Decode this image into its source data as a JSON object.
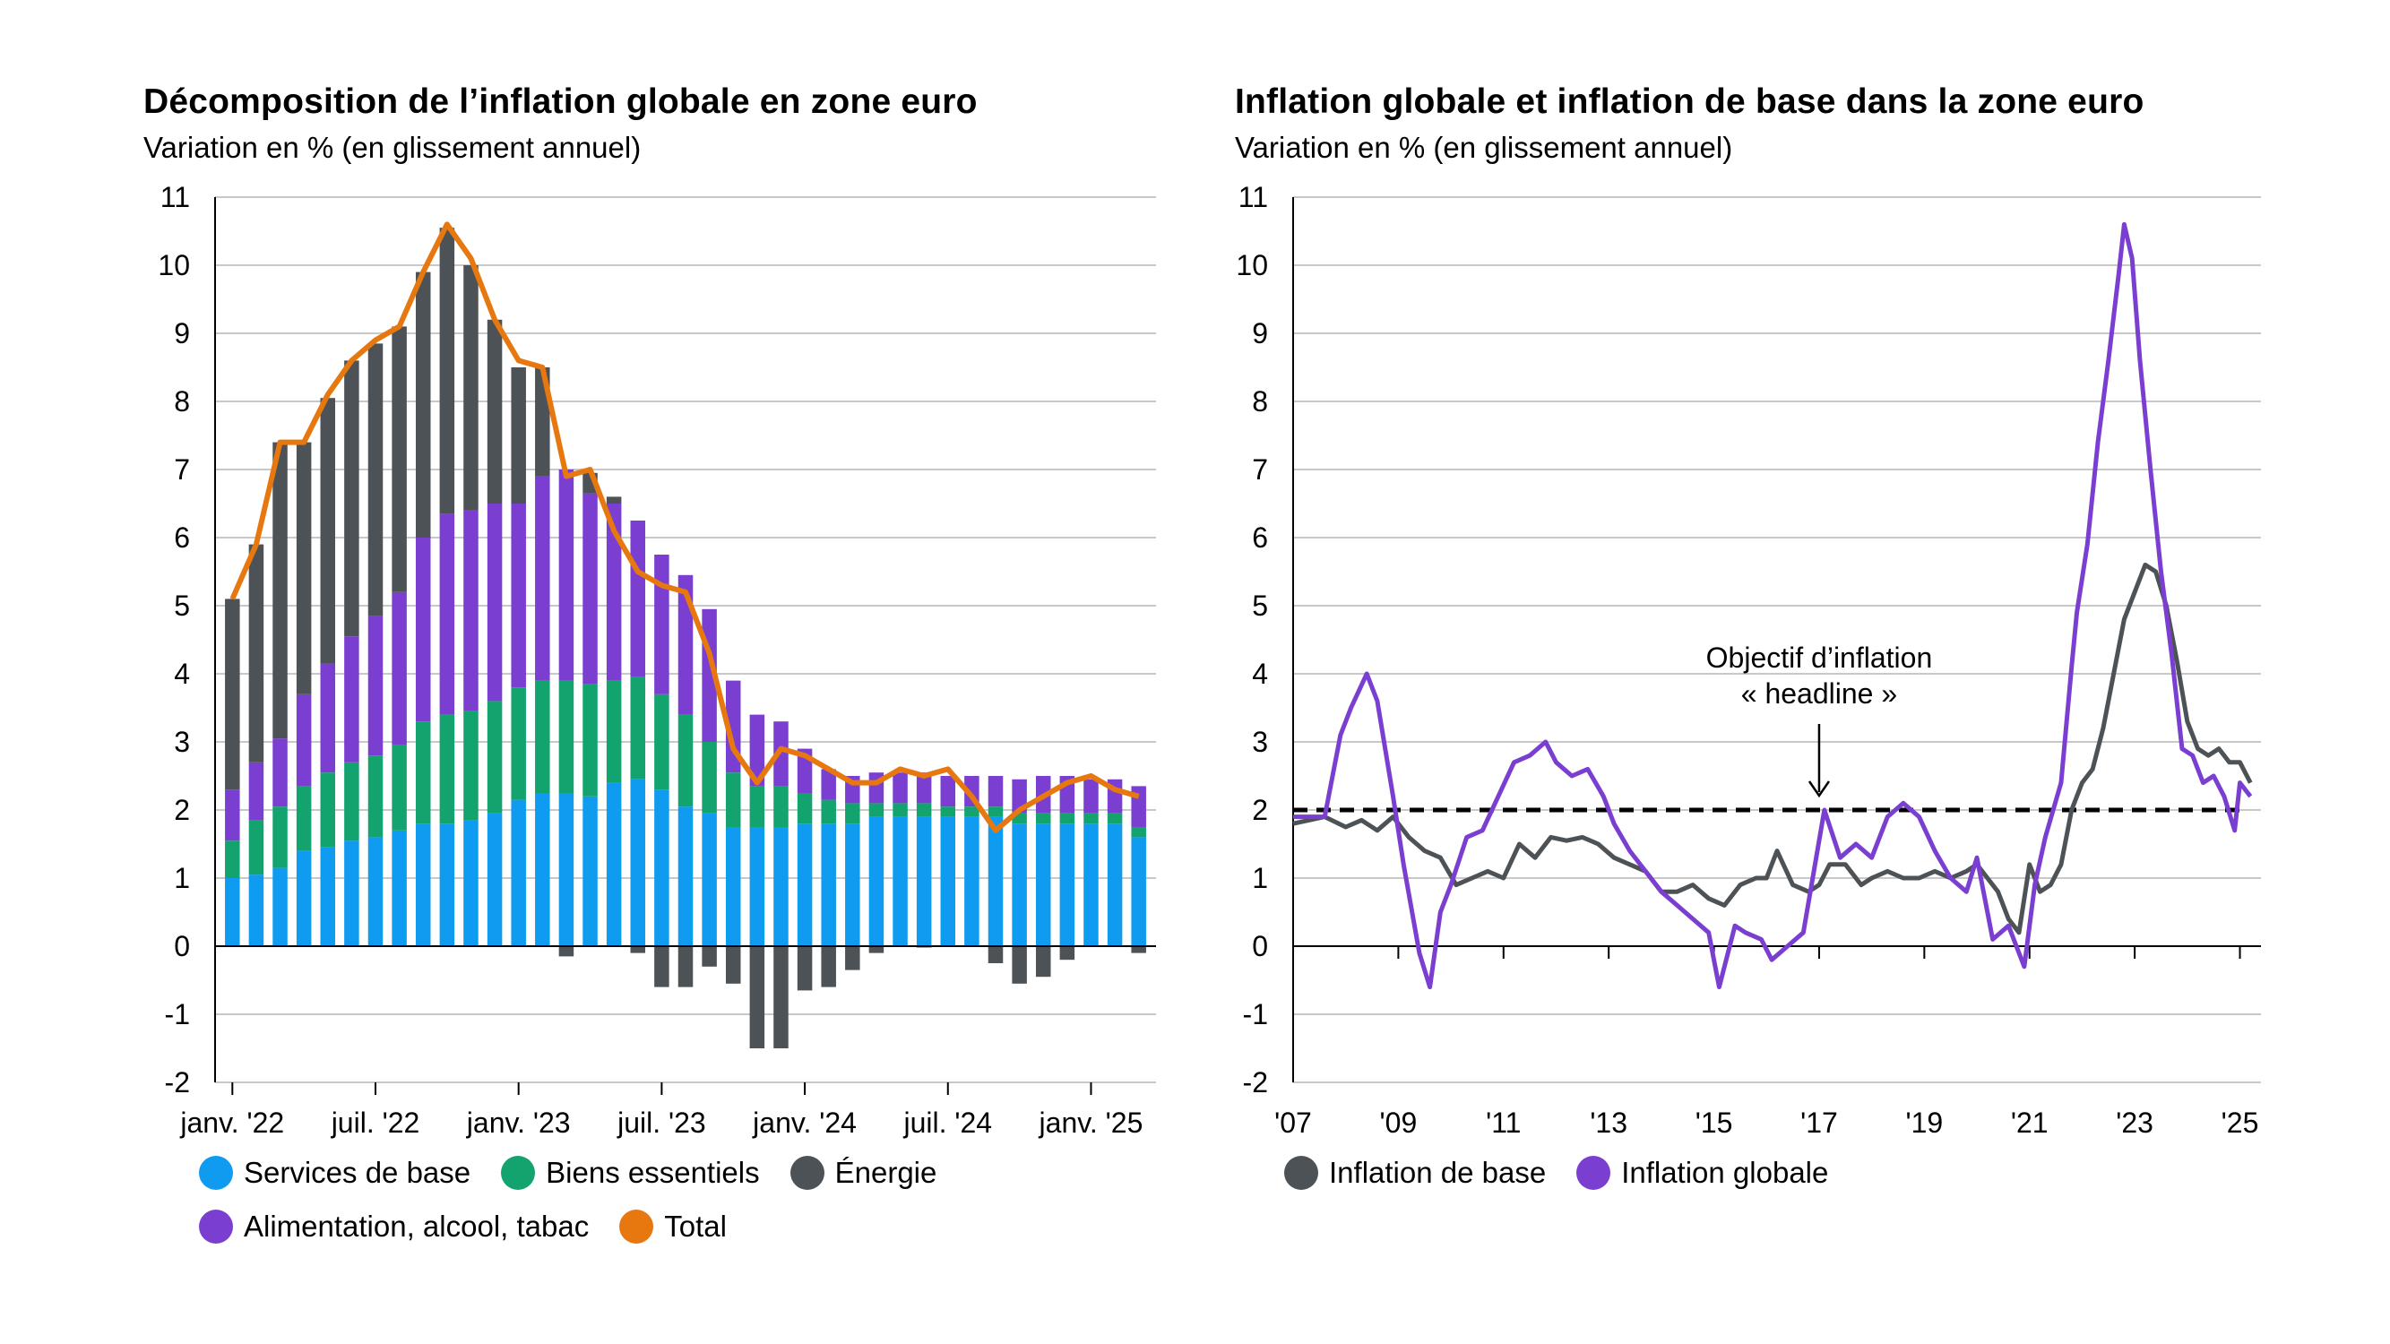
{
  "chart_data": [
    {
      "type": "bar",
      "stacked": true,
      "title": "Décomposition de l’inflation globale en zone euro",
      "subtitle": "Variation en % (en glissement annuel)",
      "ylim": [
        -2,
        11
      ],
      "yticks": [
        -2,
        -1,
        0,
        1,
        2,
        3,
        4,
        5,
        6,
        7,
        8,
        9,
        10,
        11
      ],
      "xtick_labels": [
        "janv. '22",
        "juil. '22",
        "janv. '23",
        "juil. '23",
        "janv. '24",
        "juil. '24",
        "janv. '25"
      ],
      "xtick_indices": [
        0,
        6,
        12,
        18,
        24,
        30,
        36
      ],
      "categories": [
        "2022-01",
        "2022-02",
        "2022-03",
        "2022-04",
        "2022-05",
        "2022-06",
        "2022-07",
        "2022-08",
        "2022-09",
        "2022-10",
        "2022-11",
        "2022-12",
        "2023-01",
        "2023-02",
        "2023-03",
        "2023-04",
        "2023-05",
        "2023-06",
        "2023-07",
        "2023-08",
        "2023-09",
        "2023-10",
        "2023-11",
        "2023-12",
        "2024-01",
        "2024-02",
        "2024-03",
        "2024-04",
        "2024-05",
        "2024-06",
        "2024-07",
        "2024-08",
        "2024-09",
        "2024-10",
        "2024-11",
        "2024-12",
        "2025-01",
        "2025-02",
        "2025-03"
      ],
      "series": [
        {
          "name": "Services de base",
          "color": "#0F9BF0",
          "values": [
            1.0,
            1.05,
            1.15,
            1.4,
            1.45,
            1.55,
            1.6,
            1.7,
            1.8,
            1.8,
            1.85,
            1.95,
            2.15,
            2.25,
            2.25,
            2.2,
            2.4,
            2.45,
            2.3,
            2.05,
            1.95,
            1.75,
            1.75,
            1.75,
            1.8,
            1.8,
            1.8,
            1.9,
            1.9,
            1.9,
            1.9,
            1.9,
            1.9,
            1.8,
            1.8,
            1.8,
            1.8,
            1.8,
            1.6
          ]
        },
        {
          "name": "Biens essentiels",
          "color": "#13A36F",
          "values": [
            0.55,
            0.8,
            0.9,
            0.95,
            1.1,
            1.15,
            1.2,
            1.25,
            1.5,
            1.6,
            1.6,
            1.65,
            1.65,
            1.65,
            1.65,
            1.65,
            1.5,
            1.5,
            1.4,
            1.35,
            1.05,
            0.8,
            0.6,
            0.6,
            0.45,
            0.35,
            0.3,
            0.2,
            0.2,
            0.2,
            0.15,
            0.15,
            0.15,
            0.15,
            0.15,
            0.15,
            0.15,
            0.15,
            0.15
          ]
        },
        {
          "name": "Alimentation, alcool, tabac",
          "color": "#7A3FD0",
          "values": [
            0.75,
            0.85,
            1.0,
            1.35,
            1.6,
            1.85,
            2.05,
            2.25,
            2.7,
            2.95,
            2.95,
            2.9,
            2.7,
            3.0,
            3.1,
            2.8,
            2.6,
            2.3,
            2.05,
            2.05,
            1.95,
            1.35,
            1.05,
            0.95,
            0.65,
            0.45,
            0.4,
            0.45,
            0.45,
            0.45,
            0.45,
            0.45,
            0.45,
            0.5,
            0.55,
            0.55,
            0.5,
            0.5,
            0.6
          ]
        },
        {
          "name": "Énergie",
          "color": "#4D5257",
          "values": [
            2.8,
            3.2,
            4.35,
            3.7,
            3.9,
            4.05,
            4.0,
            3.9,
            3.9,
            4.2,
            3.6,
            2.7,
            2.0,
            1.6,
            -0.15,
            0.3,
            0.1,
            -0.1,
            -0.6,
            -0.6,
            -0.3,
            -0.55,
            -1.5,
            -1.5,
            -0.65,
            -0.6,
            -0.35,
            -0.1,
            0.0,
            -0.02,
            0.0,
            0.0,
            -0.25,
            -0.55,
            -0.45,
            -0.2,
            0.0,
            0.0,
            -0.1
          ]
        },
        {
          "name": "Total",
          "type": "line",
          "color": "#E6780F",
          "values": [
            5.1,
            5.9,
            7.4,
            7.4,
            8.1,
            8.6,
            8.9,
            9.1,
            9.9,
            10.6,
            10.1,
            9.2,
            8.6,
            8.5,
            6.9,
            7.0,
            6.1,
            5.5,
            5.3,
            5.2,
            4.3,
            2.9,
            2.4,
            2.9,
            2.8,
            2.6,
            2.4,
            2.4,
            2.6,
            2.5,
            2.6,
            2.2,
            1.7,
            2.0,
            2.2,
            2.4,
            2.5,
            2.3,
            2.2
          ]
        }
      ],
      "legend": [
        "Services de base",
        "Biens essentiels",
        "Énergie",
        "Alimentation, alcool, tabac",
        "Total"
      ]
    },
    {
      "type": "line",
      "title": "Inflation globale et inflation de base dans la zone euro",
      "subtitle": "Variation en % (en glissement annuel)",
      "ylim": [
        -2,
        11
      ],
      "yticks": [
        -2,
        -1,
        0,
        1,
        2,
        3,
        4,
        5,
        6,
        7,
        8,
        9,
        10,
        11
      ],
      "xlim": [
        2007.0,
        2025.4
      ],
      "xtick_labels": [
        "'07",
        "'09",
        "'11",
        "'13",
        "'15",
        "'17",
        "'19",
        "'21",
        "'23",
        "'25"
      ],
      "xtick_values": [
        2007,
        2009,
        2011,
        2013,
        2015,
        2017,
        2019,
        2021,
        2023,
        2025
      ],
      "series": [
        {
          "name": "Inflation de base",
          "color": "#4D5257",
          "x": [
            2007.0,
            2007.3,
            2007.6,
            2008.0,
            2008.3,
            2008.6,
            2008.9,
            2009.2,
            2009.5,
            2009.8,
            2010.1,
            2010.4,
            2010.7,
            2011.0,
            2011.3,
            2011.6,
            2011.9,
            2012.2,
            2012.5,
            2012.8,
            2013.1,
            2013.4,
            2013.7,
            2014.0,
            2014.3,
            2014.6,
            2014.9,
            2015.2,
            2015.5,
            2015.8,
            2016.0,
            2016.2,
            2016.5,
            2016.8,
            2017.0,
            2017.2,
            2017.5,
            2017.8,
            2018.0,
            2018.3,
            2018.6,
            2018.9,
            2019.2,
            2019.5,
            2019.8,
            2020.0,
            2020.2,
            2020.4,
            2020.6,
            2020.8,
            2021.0,
            2021.2,
            2021.4,
            2021.6,
            2021.8,
            2022.0,
            2022.2,
            2022.4,
            2022.6,
            2022.8,
            2023.0,
            2023.2,
            2023.4,
            2023.6,
            2023.8,
            2024.0,
            2024.2,
            2024.4,
            2024.6,
            2024.8,
            2025.0,
            2025.2
          ],
          "values": [
            1.8,
            1.85,
            1.9,
            1.75,
            1.85,
            1.7,
            1.9,
            1.6,
            1.4,
            1.3,
            0.9,
            1.0,
            1.1,
            1.0,
            1.5,
            1.3,
            1.6,
            1.55,
            1.6,
            1.5,
            1.3,
            1.2,
            1.1,
            0.8,
            0.8,
            0.9,
            0.7,
            0.6,
            0.9,
            1.0,
            1.0,
            1.4,
            0.9,
            0.8,
            0.9,
            1.2,
            1.2,
            0.9,
            1.0,
            1.1,
            1.0,
            1.0,
            1.1,
            1.0,
            1.1,
            1.2,
            1.0,
            0.8,
            0.4,
            0.2,
            1.2,
            0.8,
            0.9,
            1.2,
            2.0,
            2.4,
            2.6,
            3.2,
            4.0,
            4.8,
            5.2,
            5.6,
            5.5,
            5.0,
            4.2,
            3.3,
            2.9,
            2.8,
            2.9,
            2.7,
            2.7,
            2.4
          ]
        },
        {
          "name": "Inflation globale",
          "color": "#7A3FD0",
          "x": [
            2007.0,
            2007.3,
            2007.6,
            2007.9,
            2008.1,
            2008.4,
            2008.6,
            2008.9,
            2009.1,
            2009.4,
            2009.6,
            2009.8,
            2010.0,
            2010.3,
            2010.6,
            2010.9,
            2011.2,
            2011.5,
            2011.8,
            2012.0,
            2012.3,
            2012.6,
            2012.9,
            2013.1,
            2013.4,
            2013.7,
            2014.0,
            2014.3,
            2014.6,
            2014.9,
            2015.1,
            2015.4,
            2015.6,
            2015.9,
            2016.1,
            2016.4,
            2016.7,
            2016.9,
            2017.1,
            2017.4,
            2017.7,
            2018.0,
            2018.3,
            2018.6,
            2018.9,
            2019.2,
            2019.5,
            2019.8,
            2020.0,
            2020.3,
            2020.6,
            2020.9,
            2021.1,
            2021.3,
            2021.6,
            2021.8,
            2021.9,
            2022.1,
            2022.3,
            2022.5,
            2022.7,
            2022.8,
            2022.95,
            2023.1,
            2023.3,
            2023.5,
            2023.7,
            2023.9,
            2024.1,
            2024.3,
            2024.5,
            2024.7,
            2024.9,
            2025.0,
            2025.2
          ],
          "values": [
            1.9,
            1.9,
            1.9,
            3.1,
            3.5,
            4.0,
            3.6,
            2.2,
            1.2,
            -0.1,
            -0.6,
            0.5,
            0.9,
            1.6,
            1.7,
            2.2,
            2.7,
            2.8,
            3.0,
            2.7,
            2.5,
            2.6,
            2.2,
            1.8,
            1.4,
            1.1,
            0.8,
            0.6,
            0.4,
            0.2,
            -0.6,
            0.3,
            0.2,
            0.1,
            -0.2,
            0.0,
            0.2,
            1.1,
            2.0,
            1.3,
            1.5,
            1.3,
            1.9,
            2.1,
            1.9,
            1.4,
            1.0,
            0.8,
            1.3,
            0.1,
            0.3,
            -0.3,
            0.9,
            1.6,
            2.4,
            4.1,
            4.9,
            5.9,
            7.4,
            8.6,
            9.9,
            10.6,
            10.1,
            8.6,
            7.0,
            5.5,
            4.3,
            2.9,
            2.8,
            2.4,
            2.5,
            2.2,
            1.7,
            2.4,
            2.2
          ]
        }
      ],
      "reference_line": {
        "value": 2,
        "style": "dashed"
      },
      "annotation": {
        "line1": "Objectif d’inflation",
        "line2": "« headline »",
        "x": 2017,
        "y": 2
      },
      "legend": [
        "Inflation de base",
        "Inflation globale"
      ]
    }
  ],
  "left": {
    "title": "Décomposition de l’inflation globale en zone euro",
    "subtitle": "Variation en % (en glissement annuel)",
    "legend": {
      "services": "Services de base",
      "biens": "Biens essentiels",
      "energie": "Énergie",
      "alimentation": "Alimentation, alcool, tabac",
      "total": "Total"
    }
  },
  "right": {
    "title": "Inflation globale et inflation de base dans la zone euro",
    "subtitle": "Variation en % (en glissement annuel)",
    "legend": {
      "base": "Inflation de base",
      "globale": "Inflation globale"
    }
  }
}
